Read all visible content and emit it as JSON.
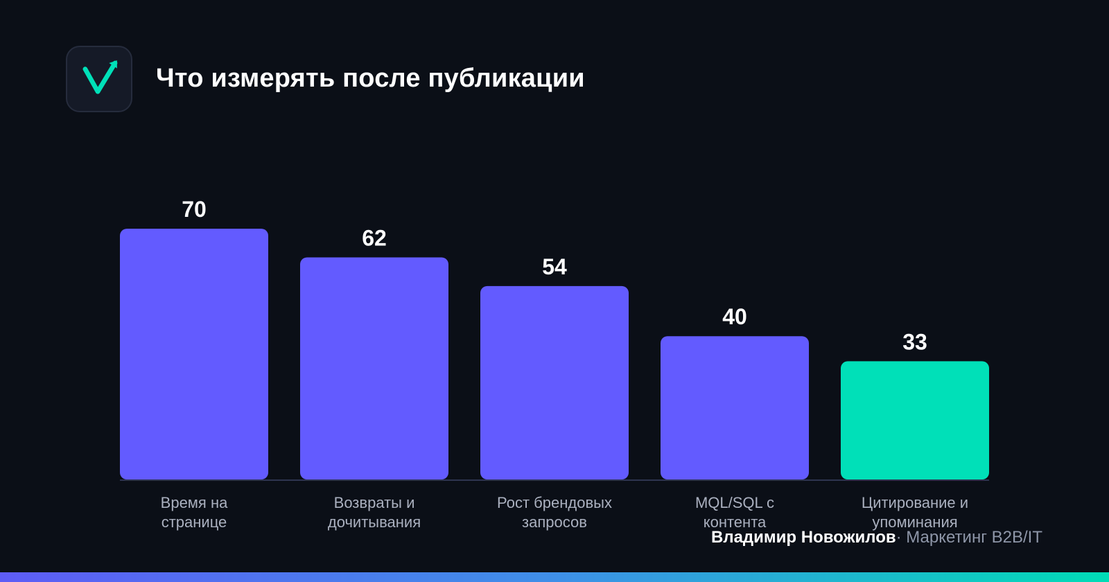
{
  "header": {
    "title": "Что измерять после публикации",
    "logo_icon": "check-arrow-logo-icon"
  },
  "chart_data": {
    "type": "bar",
    "title": "Что измерять после публикации",
    "xlabel": "",
    "ylabel": "",
    "ylim": [
      0,
      70
    ],
    "grid": false,
    "categories": [
      [
        "Время на",
        "странице"
      ],
      [
        "Возвраты и",
        "дочитывания"
      ],
      [
        "Рост брендовых",
        "запросов"
      ],
      [
        "MQL/SQL с",
        "контента"
      ],
      [
        "Цитирование и",
        "упоминания"
      ]
    ],
    "values": [
      70,
      62,
      54,
      40,
      33
    ],
    "bar_colors": [
      "#635bff",
      "#635bff",
      "#635bff",
      "#635bff",
      "#00e0b8"
    ]
  },
  "footer": {
    "author": "Владимир Новожилов",
    "subtitle": "· Маркетинг B2B/IT"
  },
  "colors": {
    "background": "#0b0f17",
    "accent": "#00e0b8",
    "primary_bar": "#635bff",
    "label_text": "#aab0bf"
  }
}
